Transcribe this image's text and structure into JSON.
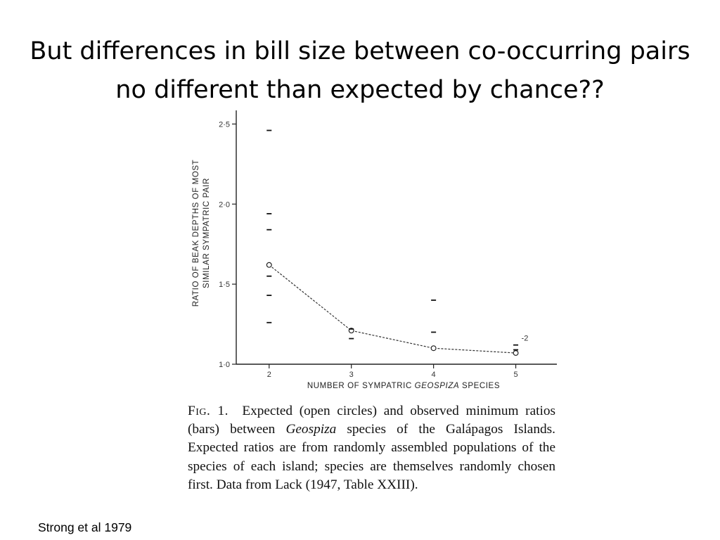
{
  "slide": {
    "title_line1": "But differences in bill size between co-occurring pairs",
    "title_line2": "no different than expected by chance??",
    "credit": "Strong et al 1979"
  },
  "figure": {
    "caption_label": "Fig. 1.",
    "caption_text": "Expected (open circles) and observed minimum ratios (bars) between",
    "caption_genus": "Geospiza",
    "caption_rest": "species of the Galápagos Islands. Expected ratios are from randomly assembled populations of the species of each island; species are themselves randomly chosen first. Data from Lack (1947, Table XXIII)."
  },
  "chart_data": {
    "type": "scatter",
    "xlabel_prefix": "NUMBER OF SYMPATRIC ",
    "xlabel_italic": "GEOSPIZA",
    "xlabel_suffix": " SPECIES",
    "ylabel_line1": "RATIO OF BEAK DEPTHS OF MOST",
    "ylabel_line2": "SIMILAR SYMPATRIC PAIR",
    "x_ticks": [
      {
        "value": 2,
        "label": "2"
      },
      {
        "value": 3,
        "label": "3"
      },
      {
        "value": 4,
        "label": "4"
      },
      {
        "value": 5,
        "label": "5"
      }
    ],
    "y_ticks": [
      {
        "value": 1.0,
        "label": "1·0"
      },
      {
        "value": 1.5,
        "label": "1·5"
      },
      {
        "value": 2.0,
        "label": "2·0"
      },
      {
        "value": 2.5,
        "label": "2·5"
      }
    ],
    "xlim": [
      1.6,
      5.5
    ],
    "ylim": [
      1.0,
      2.55
    ],
    "expected": {
      "x": [
        2,
        3,
        4,
        5
      ],
      "y": [
        1.62,
        1.21,
        1.1,
        1.07
      ]
    },
    "observed": [
      {
        "x": 2,
        "y": 2.46
      },
      {
        "x": 2,
        "y": 1.94
      },
      {
        "x": 2,
        "y": 1.84
      },
      {
        "x": 2,
        "y": 1.55
      },
      {
        "x": 2,
        "y": 1.43
      },
      {
        "x": 2,
        "y": 1.26
      },
      {
        "x": 3,
        "y": 1.22
      },
      {
        "x": 3,
        "y": 1.16
      },
      {
        "x": 4,
        "y": 1.4
      },
      {
        "x": 4,
        "y": 1.2
      },
      {
        "x": 5,
        "y": 1.12
      },
      {
        "x": 5,
        "y": 1.09
      }
    ],
    "annotation": {
      "x": 5,
      "y": 1.13,
      "text": "-2"
    }
  }
}
